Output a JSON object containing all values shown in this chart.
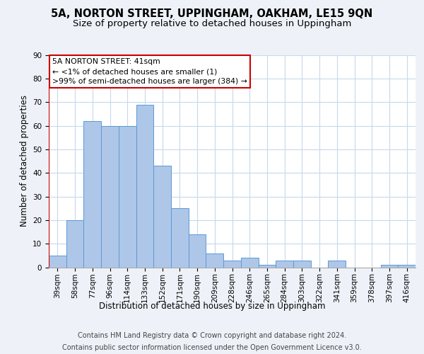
{
  "title1": "5A, NORTON STREET, UPPINGHAM, OAKHAM, LE15 9QN",
  "title2": "Size of property relative to detached houses in Uppingham",
  "xlabel": "Distribution of detached houses by size in Uppingham",
  "ylabel": "Number of detached properties",
  "categories": [
    "39sqm",
    "58sqm",
    "77sqm",
    "96sqm",
    "114sqm",
    "133sqm",
    "152sqm",
    "171sqm",
    "190sqm",
    "209sqm",
    "228sqm",
    "246sqm",
    "265sqm",
    "284sqm",
    "303sqm",
    "322sqm",
    "341sqm",
    "359sqm",
    "378sqm",
    "397sqm",
    "416sqm"
  ],
  "values": [
    5,
    20,
    62,
    60,
    60,
    69,
    43,
    25,
    14,
    6,
    3,
    4,
    1,
    3,
    3,
    0,
    3,
    0,
    0,
    1,
    1
  ],
  "bar_color": "#aec6e8",
  "bar_edgecolor": "#5b9bd5",
  "highlight_color": "#cc0000",
  "annotation_box_text": "5A NORTON STREET: 41sqm\n← <1% of detached houses are smaller (1)\n>99% of semi-detached houses are larger (384) →",
  "annotation_box_color": "#ffffff",
  "annotation_box_edgecolor": "#cc0000",
  "ylim": [
    0,
    90
  ],
  "yticks": [
    0,
    10,
    20,
    30,
    40,
    50,
    60,
    70,
    80,
    90
  ],
  "footer_line1": "Contains HM Land Registry data © Crown copyright and database right 2024.",
  "footer_line2": "Contains public sector information licensed under the Open Government Licence v3.0.",
  "background_color": "#eef2f8",
  "plot_background": "#ffffff",
  "grid_color": "#c8d8ec",
  "title1_fontsize": 10.5,
  "title2_fontsize": 9.5,
  "xlabel_fontsize": 8.5,
  "ylabel_fontsize": 8.5,
  "footer_fontsize": 7.0,
  "tick_fontsize": 7.5,
  "annotation_fontsize": 7.8
}
